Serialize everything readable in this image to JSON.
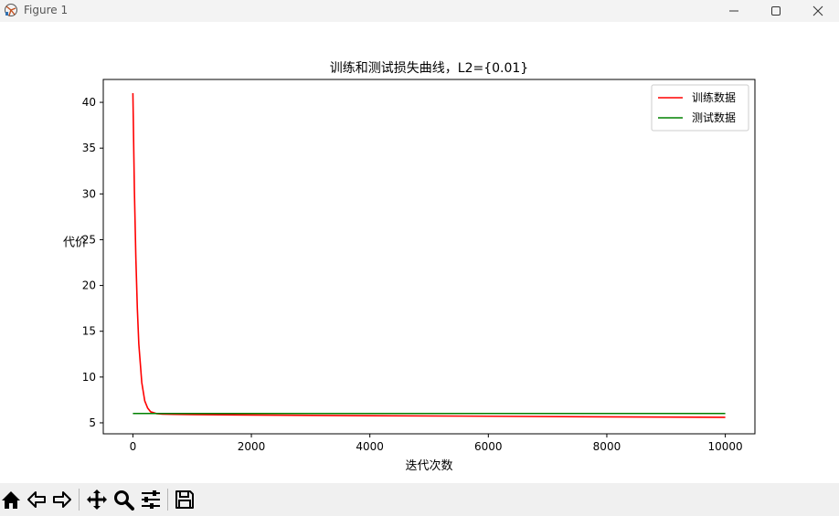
{
  "window": {
    "title": "Figure 1"
  },
  "toolbar": {
    "buttons": [
      "home-icon",
      "back-icon",
      "forward-icon",
      "pan-icon",
      "zoom-icon",
      "configure-icon",
      "save-icon"
    ]
  },
  "chart_data": {
    "type": "line",
    "title": "训练和测试损失曲线，L2={0.01}",
    "xlabel": "迭代次数",
    "ylabel": "代价",
    "xlim": [
      -500,
      10500
    ],
    "ylim": [
      3.8,
      42.5
    ],
    "xticks": [
      0,
      2000,
      4000,
      6000,
      8000,
      10000
    ],
    "yticks": [
      5,
      10,
      15,
      20,
      25,
      30,
      35,
      40
    ],
    "legend_position": "top-right",
    "grid": false,
    "series": [
      {
        "name": "训练数据",
        "color": "#ff0000",
        "x": [
          0,
          25,
          50,
          75,
          100,
          150,
          200,
          250,
          300,
          400,
          500,
          700,
          1000,
          2000,
          4000,
          6000,
          8000,
          10000
        ],
        "y": [
          41.0,
          30.5,
          23.0,
          17.5,
          13.6,
          9.4,
          7.4,
          6.6,
          6.2,
          6.0,
          5.95,
          5.92,
          5.9,
          5.85,
          5.78,
          5.72,
          5.65,
          5.6
        ]
      },
      {
        "name": "测试数据",
        "color": "#008000",
        "x": [
          0,
          2000,
          4000,
          6000,
          8000,
          10000
        ],
        "y": [
          6.02,
          6.02,
          6.02,
          6.02,
          6.02,
          6.02
        ]
      }
    ]
  }
}
